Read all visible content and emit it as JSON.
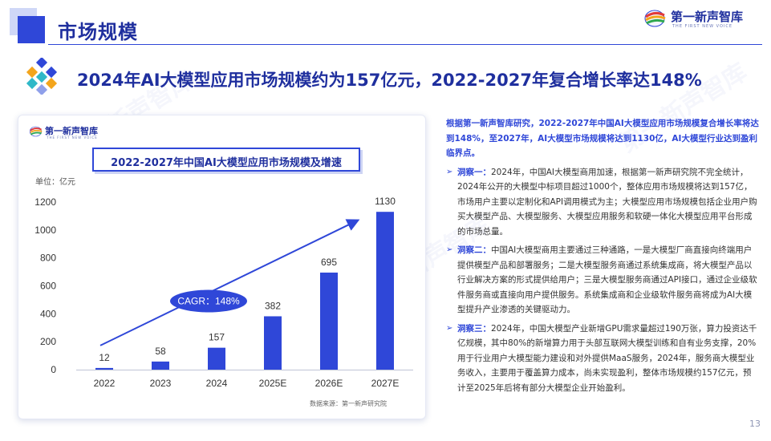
{
  "header": {
    "title": "市场规模",
    "brand_name": "第一新声智库",
    "brand_sub": "THE FIRST NEW VOICE"
  },
  "headline": "2024年AI大模型应用市场规模约为157亿元，2022-2027年复合增长率达148%",
  "chart_card": {
    "brand_name": "第一新声智库",
    "brand_sub": "THE FIRST NEW VOICE",
    "title": "2022-2027年中国AI大模型应用市场规模及增速",
    "unit_label": "单位：亿元",
    "source": "数据来源：第一新声研究院",
    "cagr_label": "CAGR：148%"
  },
  "chart_data": {
    "type": "bar",
    "title": "2022-2027年中国AI大模型应用市场规模及增速",
    "categories": [
      "2022",
      "2023",
      "2024",
      "2025E",
      "2026E",
      "2027E"
    ],
    "values": [
      12,
      58,
      157,
      382,
      695,
      1130
    ],
    "data_labels": [
      "12",
      "58",
      "157",
      "382",
      "695",
      "1130"
    ],
    "ylabel": "单位：亿元",
    "ylim": [
      0,
      1200
    ],
    "yticks": [
      0,
      200,
      400,
      600,
      800,
      1000,
      1200
    ],
    "bar_color": "#2f47d8",
    "grid": false,
    "annotation": "CAGR：148%"
  },
  "right_text": {
    "lead": "根据第一新声智库研究，2022-2027年中国AI大模型应用市场规模复合增长率将达到148%，至2027年，AI大模型市场规模将达到1130亿，AI大模型行业达到盈利临界点。",
    "items": [
      {
        "label": "洞察一：",
        "text": "2024年，中国AI大模型商用加速，根据第一新声研究院不完全统计，2024年公开的大模型中标项目超过1000个，整体应用市场规模将达到157亿，市场用户主要以定制化和API调用模式为主；大模型应用市场规模包括企业用户购买大模型产品、大模型服务、大模型应用服务和软硬一体化大模型应用平台形成的市场总量。"
      },
      {
        "label": "洞察二：",
        "text": "中国AI大模型商用主要通过三种通路，一是大模型厂商直接向终端用户提供模型产品和部署服务；二是大模型服务商通过系统集成商，将大模型产品以行业解决方案的形式提供给用户；三是大模型服务商通过API接口，通过企业级软件服务商或直接向用户提供服务。系统集成商和企业级软件服务商将成为AI大模型提升产业渗透的关键驱动力。"
      },
      {
        "label": "洞察三：",
        "text": "2024年，中国大模型产业新增GPU需求量超过190万张，算力投资达千亿规模，其中80%的新增算力用于头部互联网大模型训练和自有业务支撑，20%用于行业用户大模型能力建设和对外提供MaaS服务，2024年，服务商大模型业务收入，主要用于覆盖算力成本，尚未实现盈利，整体市场规模约157亿元，预计至2025年后将有部分大模型企业开始盈利。"
      }
    ]
  },
  "page_number": "13",
  "colors": {
    "primary": "#2f47d8",
    "dark": "#1f2f9e",
    "light": "#cfd7f7"
  }
}
